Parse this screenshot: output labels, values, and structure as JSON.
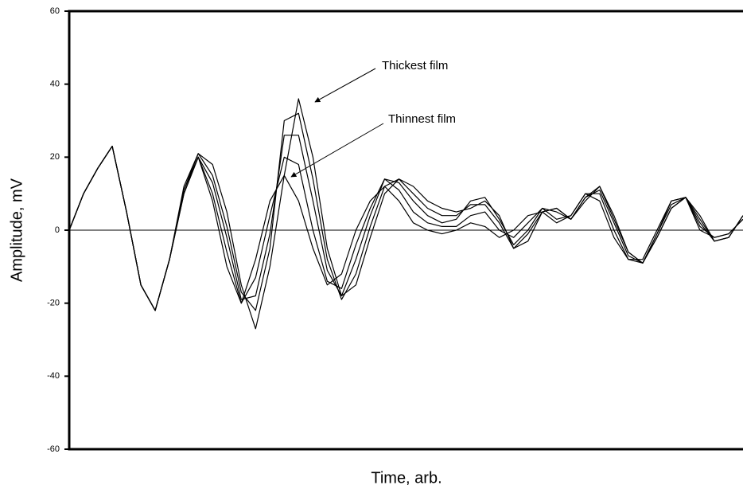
{
  "chart_data": {
    "type": "line",
    "x_label": "Time, arb.",
    "y_label": "Amplitude, mV",
    "annotations": [
      "Thickest film",
      "Thinnest film"
    ],
    "categories": [
      null,
      null,
      null,
      null,
      null,
      null,
      null,
      null,
      null,
      null,
      null,
      null,
      null,
      null,
      null,
      null,
      null,
      null,
      null,
      null,
      null,
      null,
      null,
      null,
      null,
      null,
      null,
      null,
      null,
      null,
      null,
      null,
      null,
      null,
      null,
      null,
      null,
      null,
      null,
      null,
      null,
      null,
      null,
      null,
      null,
      null,
      null,
      null
    ],
    "ylim": [
      -60,
      60
    ],
    "yticks": [
      -60,
      -40,
      -20,
      0,
      20,
      40,
      60
    ],
    "zero_line": true,
    "series": [
      {
        "color": "#000000",
        "values": [
          0,
          10,
          17,
          23,
          5,
          -15,
          -22,
          -8,
          10,
          20,
          8,
          -10,
          -20,
          -8,
          8,
          15,
          8,
          -5,
          -15,
          -12,
          0,
          8,
          12,
          8,
          2,
          0,
          -1,
          0,
          2,
          1,
          -2,
          0,
          4,
          5,
          2,
          4,
          10,
          8,
          -2,
          -8,
          -8,
          0,
          8,
          9,
          0,
          -2,
          -1,
          3
        ]
      },
      {
        "color": "#000000",
        "values": [
          0,
          10,
          17,
          23,
          5,
          -15,
          -22,
          -8,
          10,
          20,
          10,
          -6,
          -20,
          -13,
          4,
          20,
          18,
          0,
          -14,
          -16,
          -4,
          6,
          14,
          11,
          5,
          2,
          1,
          1,
          4,
          5,
          0,
          -2,
          2,
          6,
          3,
          4,
          10,
          10,
          0,
          -8,
          -9,
          -1,
          8,
          9,
          1,
          -2,
          -1,
          3
        ]
      },
      {
        "color": "#000000",
        "values": [
          0,
          10,
          17,
          23,
          5,
          -15,
          -22,
          -8,
          11,
          20,
          13,
          -2,
          -19,
          -18,
          -1,
          26,
          26,
          8,
          -11,
          -18,
          -8,
          4,
          14,
          13,
          8,
          4,
          2,
          3,
          8,
          9,
          3,
          -4,
          0,
          6,
          5,
          3,
          9,
          11,
          2,
          -7,
          -9,
          -1,
          7,
          9,
          2,
          -3,
          -2,
          4
        ]
      },
      {
        "color": "#000000",
        "values": [
          0,
          10,
          17,
          23,
          5,
          -15,
          -22,
          -8,
          11,
          21,
          15,
          1,
          -17,
          -22,
          -5,
          30,
          32,
          14,
          -8,
          -19,
          -12,
          1,
          12,
          14,
          10,
          6,
          4,
          4,
          7,
          7,
          2,
          -5,
          -1,
          5,
          6,
          3,
          9,
          12,
          3,
          -6,
          -9,
          -2,
          6,
          9,
          3,
          -3,
          -2,
          4
        ]
      },
      {
        "color": "#000000",
        "values": [
          0,
          10,
          17,
          23,
          5,
          -15,
          -22,
          -8,
          12,
          21,
          18,
          5,
          -15,
          -27,
          -10,
          15,
          36,
          20,
          -5,
          -18,
          -15,
          -2,
          10,
          14,
          12,
          8,
          6,
          5,
          6,
          8,
          4,
          -5,
          -3,
          5,
          6,
          3,
          8,
          12,
          4,
          -6,
          -9,
          -2,
          6,
          9,
          4,
          -3,
          -2,
          4
        ]
      }
    ]
  }
}
